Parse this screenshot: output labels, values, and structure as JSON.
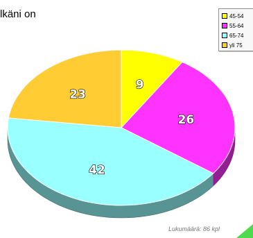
{
  "chart_data": {
    "type": "pie",
    "title": "lkäni on",
    "categories": [
      "45-54",
      "55-64",
      "65-74",
      "yli 75"
    ],
    "values": [
      9,
      26,
      42,
      23
    ],
    "colors": [
      "#ffff00",
      "#ff33ff",
      "#99ffff",
      "#ffcc33"
    ],
    "count_label": "Lukumäärä: 86 kpl",
    "legend_position": "top-right"
  },
  "legend": {
    "items": [
      {
        "label": "45-54",
        "color": "#ffff00"
      },
      {
        "label": "55-64",
        "color": "#ff33ff"
      },
      {
        "label": "65-74",
        "color": "#99ffff"
      },
      {
        "label": "yli 75",
        "color": "#ffcc33"
      }
    ]
  },
  "corner_accent_color": "#4fd94f"
}
